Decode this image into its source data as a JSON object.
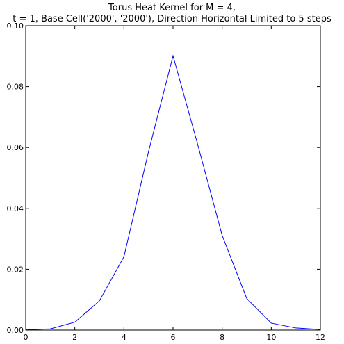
{
  "chart_data": {
    "type": "line",
    "title_lines": [
      "Torus Heat Kernel for M = 4,",
      "t = 1, Base Cell('2000', '2000'), Direction Horizontal Limited to 5 steps"
    ],
    "xlabel": "",
    "ylabel": "",
    "xlim": [
      0,
      12
    ],
    "ylim": [
      0,
      0.1
    ],
    "xticks": [
      "0",
      "2",
      "4",
      "6",
      "8",
      "10",
      "12"
    ],
    "yticks": [
      "0.00",
      "0.02",
      "0.04",
      "0.06",
      "0.08",
      "0.10"
    ],
    "grid": false,
    "series": [
      {
        "color": "#0000ff",
        "x": [
          0,
          1,
          2,
          3,
          4,
          5,
          6,
          7,
          8,
          9,
          10,
          11,
          12
        ],
        "y": [
          0.0001,
          0.0004,
          0.0026,
          0.0096,
          0.0241,
          0.0586,
          0.0901,
          0.0611,
          0.0311,
          0.0104,
          0.0023,
          0.0007,
          0.0002
        ]
      }
    ]
  }
}
